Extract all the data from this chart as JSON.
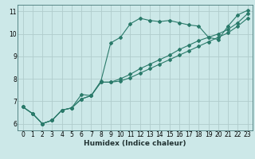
{
  "title": "",
  "xlabel": "Humidex (Indice chaleur)",
  "bg_color": "#cce8e8",
  "grid_color": "#b0cccc",
  "line_color": "#2a7a6a",
  "xlim": [
    -0.5,
    23.5
  ],
  "ylim": [
    5.7,
    11.3
  ],
  "xticks": [
    0,
    1,
    2,
    3,
    4,
    5,
    6,
    7,
    8,
    9,
    10,
    11,
    12,
    13,
    14,
    15,
    16,
    17,
    18,
    19,
    20,
    21,
    22,
    23
  ],
  "yticks": [
    6,
    7,
    8,
    9,
    10,
    11
  ],
  "line1_x": [
    0,
    1,
    2,
    3,
    4,
    5,
    6,
    7,
    8,
    9,
    10,
    11,
    12,
    13,
    14,
    15,
    16,
    17,
    18,
    19,
    20,
    21,
    22,
    23
  ],
  "line1_y": [
    6.75,
    6.45,
    6.0,
    6.15,
    6.6,
    6.7,
    7.3,
    7.25,
    7.9,
    9.6,
    9.85,
    10.45,
    10.7,
    10.6,
    10.55,
    10.6,
    10.5,
    10.4,
    10.35,
    9.85,
    9.75,
    10.35,
    10.85,
    11.05
  ],
  "line2_x": [
    0,
    1,
    2,
    3,
    4,
    5,
    6,
    7,
    8,
    9,
    10,
    11,
    12,
    13,
    14,
    15,
    16,
    17,
    18,
    19,
    20,
    21,
    22,
    23
  ],
  "line2_y": [
    6.75,
    6.45,
    6.0,
    6.15,
    6.6,
    6.7,
    7.1,
    7.25,
    7.85,
    7.85,
    8.0,
    8.2,
    8.45,
    8.65,
    8.85,
    9.05,
    9.3,
    9.5,
    9.7,
    9.85,
    10.0,
    10.2,
    10.5,
    10.9
  ],
  "line3_x": [
    0,
    1,
    2,
    3,
    4,
    5,
    6,
    7,
    8,
    9,
    10,
    11,
    12,
    13,
    14,
    15,
    16,
    17,
    18,
    19,
    20,
    21,
    22,
    23
  ],
  "line3_y": [
    6.75,
    6.45,
    6.0,
    6.15,
    6.6,
    6.7,
    7.1,
    7.25,
    7.85,
    7.85,
    7.9,
    8.05,
    8.25,
    8.45,
    8.65,
    8.85,
    9.05,
    9.25,
    9.45,
    9.65,
    9.85,
    10.05,
    10.35,
    10.7
  ],
  "tick_fontsize": 5.5,
  "xlabel_fontsize": 6.5
}
